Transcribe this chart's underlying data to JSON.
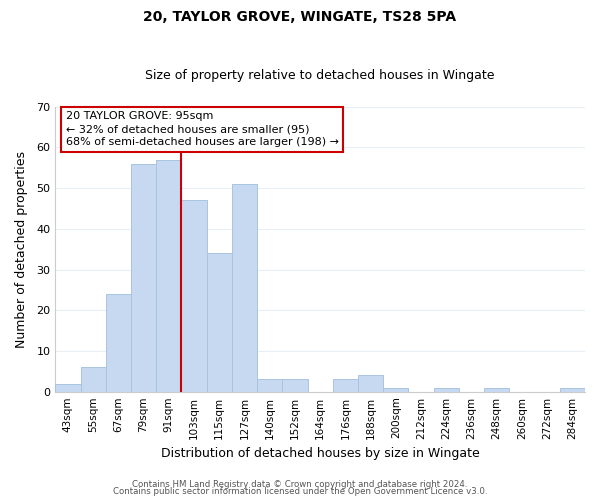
{
  "title": "20, TAYLOR GROVE, WINGATE, TS28 5PA",
  "subtitle": "Size of property relative to detached houses in Wingate",
  "xlabel": "Distribution of detached houses by size in Wingate",
  "ylabel": "Number of detached properties",
  "bar_labels": [
    "43sqm",
    "55sqm",
    "67sqm",
    "79sqm",
    "91sqm",
    "103sqm",
    "115sqm",
    "127sqm",
    "140sqm",
    "152sqm",
    "164sqm",
    "176sqm",
    "188sqm",
    "200sqm",
    "212sqm",
    "224sqm",
    "236sqm",
    "248sqm",
    "260sqm",
    "272sqm",
    "284sqm"
  ],
  "bar_values": [
    2,
    6,
    24,
    56,
    57,
    47,
    34,
    51,
    3,
    3,
    0,
    3,
    4,
    1,
    0,
    1,
    0,
    1,
    0,
    0,
    1
  ],
  "bar_color": "#c6d9f0",
  "bar_edge_color": "#a8c4e0",
  "vline_index": 5,
  "vline_color": "#cc0000",
  "ylim": [
    0,
    70
  ],
  "yticks": [
    0,
    10,
    20,
    30,
    40,
    50,
    60,
    70
  ],
  "annotation_title": "20 TAYLOR GROVE: 95sqm",
  "annotation_line1": "← 32% of detached houses are smaller (95)",
  "annotation_line2": "68% of semi-detached houses are larger (198) →",
  "annotation_box_color": "#ffffff",
  "annotation_box_edge": "#cc0000",
  "footer1": "Contains HM Land Registry data © Crown copyright and database right 2024.",
  "footer2": "Contains public sector information licensed under the Open Government Licence v3.0.",
  "grid_color": "#e8eef5",
  "background_color": "#ffffff",
  "title_fontsize": 10,
  "subtitle_fontsize": 9
}
